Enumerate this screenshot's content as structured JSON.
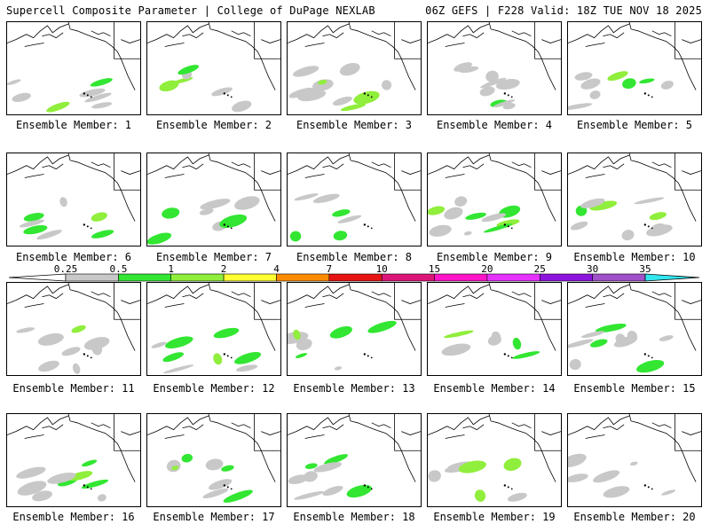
{
  "header": {
    "left": "Supercell Composite Parameter | College of DuPage NEXLAB",
    "right": "06Z GEFS | F228 Valid: 18Z TUE NOV 18 2025"
  },
  "label_prefix": "Ensemble Member: ",
  "members": [
    "1",
    "2",
    "3",
    "4",
    "5",
    "6",
    "7",
    "8",
    "9",
    "10",
    "11",
    "12",
    "13",
    "14",
    "15",
    "16",
    "17",
    "18",
    "19",
    "20"
  ],
  "legend": {
    "ticks": [
      "0.25",
      "0.5",
      "1",
      "2",
      "4",
      "7",
      "10",
      "15",
      "20",
      "25",
      "30",
      "35"
    ],
    "colors": [
      "#c8c8c8",
      "#32e632",
      "#90ee3c",
      "#ffff32",
      "#ff8c00",
      "#e61414",
      "#dc1478",
      "#ff14c8",
      "#e632ff",
      "#8c14dc",
      "#a050c8",
      "#32e6f0"
    ],
    "low_color": "#ffffff"
  },
  "map_colors": {
    "land": "#ffffff",
    "coast": "#000000",
    "light": "#c8c8c8",
    "green": "#32e632",
    "lime": "#90ee3c"
  }
}
